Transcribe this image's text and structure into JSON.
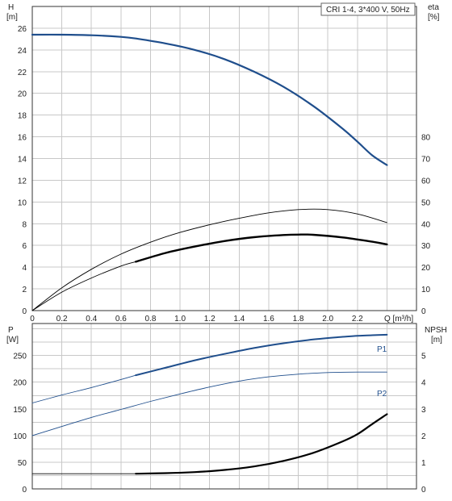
{
  "chart_data": [
    {
      "type": "line",
      "panel": "head-efficiency",
      "legend_box": "CRI 1-4, 3*400 V, 50Hz",
      "ylabel": "H",
      "yunit": "[m]",
      "ylabel_right": "eta",
      "yunit_right": "[%]",
      "xlabel": "Q [m³/h]",
      "x_ticks": [
        "0",
        "0.2",
        "0.4",
        "0.6",
        "0.8",
        "1.0",
        "1.2",
        "1.4",
        "1.6",
        "1.8",
        "2.0",
        "2.2"
      ],
      "y_ticks": [
        "0",
        "2",
        "4",
        "6",
        "8",
        "10",
        "12",
        "14",
        "16",
        "18",
        "20",
        "22",
        "24",
        "26"
      ],
      "y_ticks_right": [
        "0",
        "10",
        "20",
        "30",
        "40",
        "50",
        "60",
        "70",
        "80"
      ],
      "xlim": [
        0,
        2.6
      ],
      "ylim": [
        0,
        28
      ],
      "ylim_right": [
        0,
        140
      ],
      "grid": true,
      "series": [
        {
          "axis": "left",
          "color": "#1f4e8c",
          "width": 2.2,
          "x": [
            0,
            0.2,
            0.4,
            0.6,
            0.7,
            0.9,
            1.1,
            1.3,
            1.5,
            1.7,
            1.9,
            2.1,
            2.2,
            2.3,
            2.4
          ],
          "y": [
            25.4,
            25.4,
            25.35,
            25.2,
            25.05,
            24.6,
            24.0,
            23.15,
            22.0,
            20.6,
            18.85,
            16.75,
            15.55,
            14.3,
            13.4
          ]
        },
        {
          "axis": "right",
          "color": "#000000",
          "width": 0.9,
          "x": [
            0,
            0.2,
            0.4,
            0.6,
            0.8,
            1.0,
            1.2,
            1.4,
            1.6,
            1.8,
            2.0,
            2.2,
            2.4
          ],
          "y": [
            0,
            10.5,
            19,
            26,
            31.5,
            36,
            39.5,
            42.5,
            45,
            46.5,
            46.5,
            44.5,
            40.5
          ]
        },
        {
          "axis": "right",
          "color": "#000000",
          "width": 0.9,
          "x": [
            0,
            0.2,
            0.4,
            0.6,
            0.7
          ],
          "y": [
            0,
            8.5,
            15,
            20.5,
            22.5
          ]
        },
        {
          "axis": "right",
          "color": "#000000",
          "width": 2.4,
          "x": [
            0.7,
            0.9,
            1.1,
            1.3,
            1.5,
            1.7,
            1.8,
            1.9,
            2.1,
            2.3,
            2.4
          ],
          "y": [
            22.5,
            26.5,
            29.5,
            32,
            33.8,
            34.8,
            35,
            34.9,
            33.7,
            31.7,
            30.5
          ]
        }
      ]
    },
    {
      "type": "line",
      "panel": "power-npsh",
      "ylabel": "P",
      "yunit": "[W]",
      "ylabel_right": "NPSH",
      "yunit_right": "[m]",
      "y_ticks": [
        "0",
        "50",
        "100",
        "150",
        "200",
        "250"
      ],
      "y_ticks_right": [
        "0",
        "1",
        "2",
        "3",
        "4",
        "5"
      ],
      "xlim": [
        0,
        2.6
      ],
      "ylim": [
        0,
        310
      ],
      "ylim_right": [
        0,
        6.2
      ],
      "grid": true,
      "series": [
        {
          "name": "P1",
          "axis": "left",
          "color": "#1f4e8c",
          "width": 2.0,
          "x": [
            0.7,
            0.9,
            1.1,
            1.3,
            1.5,
            1.7,
            1.9,
            2.1,
            2.2,
            2.3,
            2.4
          ],
          "y": [
            213,
            227,
            241,
            253,
            264,
            273,
            280,
            285,
            287,
            288,
            289
          ]
        },
        {
          "name": "P1 extension",
          "axis": "left",
          "color": "#1f4e8c",
          "width": 0.9,
          "x": [
            0,
            0.2,
            0.4,
            0.6,
            0.7
          ],
          "y": [
            161,
            176,
            190,
            205,
            213
          ]
        },
        {
          "name": "P2",
          "axis": "left",
          "color": "#1f4e8c",
          "width": 0.9,
          "x": [
            0,
            0.2,
            0.4,
            0.6,
            0.8,
            1.0,
            1.2,
            1.4,
            1.6,
            1.8,
            2.0,
            2.2,
            2.4
          ],
          "y": [
            100,
            117,
            134,
            149,
            164,
            178,
            191,
            202,
            210,
            215,
            218,
            219,
            219
          ]
        },
        {
          "name": "NPSH",
          "axis": "right",
          "color": "#000000",
          "width": 0.9,
          "x": [
            0,
            0.2,
            0.4,
            0.6,
            0.7
          ],
          "y": [
            0.57,
            0.57,
            0.57,
            0.57,
            0.57
          ]
        },
        {
          "name": "NPSH bold",
          "axis": "right",
          "color": "#000000",
          "width": 2.2,
          "x": [
            0.7,
            0.9,
            1.1,
            1.3,
            1.5,
            1.7,
            1.9,
            2.1,
            2.2,
            2.3,
            2.4
          ],
          "y": [
            0.57,
            0.59,
            0.63,
            0.71,
            0.84,
            1.05,
            1.35,
            1.78,
            2.05,
            2.43,
            2.8
          ]
        }
      ],
      "series_labels": [
        "P1",
        "P2"
      ]
    }
  ]
}
